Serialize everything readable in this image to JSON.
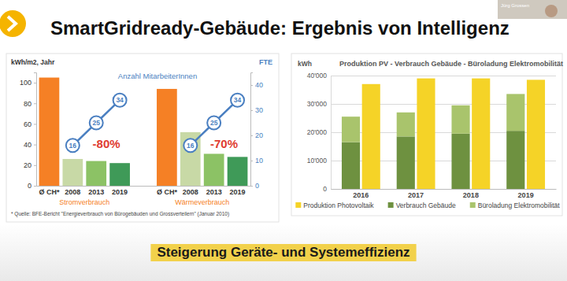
{
  "slide": {
    "title": "SmartGridready-Gebäude: Ergebnis von Intelligenz",
    "footer": "Steigerung Geräte- und Systemeffizienz",
    "presenter": "Jürg Grossen"
  },
  "chart_data": [
    {
      "type": "bar",
      "ylabel": "kWh/m2, Jahr",
      "y2label": "FTE",
      "categories": [
        "Ø CH*",
        "2008",
        "2013",
        "2019",
        null,
        "Ø CH*",
        "2008",
        "2013",
        "2019"
      ],
      "groups": [
        "Stromverbrauch",
        "Wärmeverbrauch"
      ],
      "annotations": [
        "-80%",
        "-70%"
      ],
      "footnote": "* Quelle: BFE-Bericht \"Energieverbrauch von Bürogebäuden und Grossverteilern\" (Januar 2010)",
      "series": [
        {
          "type": "bar",
          "colors": [
            "#f58025",
            "#c8d9a6",
            "#8cc265",
            "#3f9a58",
            null,
            "#f58025",
            "#c8d9a6",
            "#8cc265",
            "#3f9a58"
          ],
          "values": [
            105,
            26,
            24,
            22,
            null,
            94,
            52,
            31,
            28
          ]
        },
        {
          "name": "Anzahl MitarbeiterInnen",
          "type": "line",
          "axis": "y2",
          "color": "#4a7fc1",
          "marker": "circle",
          "data_labels": true,
          "values": [
            null,
            16,
            25,
            34,
            null,
            null,
            16,
            25,
            34
          ]
        }
      ],
      "ylim": [
        0,
        110
      ],
      "yticks": [
        0,
        20,
        40,
        60,
        80,
        100
      ],
      "y2lim": [
        0,
        45
      ],
      "y2ticks": [
        0,
        10,
        20,
        30,
        40
      ],
      "grid": false
    },
    {
      "type": "bar",
      "title": "Produktion PV - Verbrauch Gebäude - Büroladung Elektromobilität",
      "ylabel": "kWh",
      "categories": [
        "2016",
        "2017",
        "2018",
        "2019"
      ],
      "series": [
        {
          "name": "Produktion Photovoltaik",
          "color": "#f5d327",
          "values": [
            37000,
            39000,
            39000,
            38500
          ]
        },
        {
          "name": "Verbrauch Gebäude",
          "color": "#6e9140",
          "values": [
            16500,
            18500,
            19500,
            20500
          ]
        },
        {
          "name": "Büroladung Elektromobilität",
          "color": "#a9c46c",
          "values": [
            9000,
            8500,
            10000,
            13000
          ]
        }
      ],
      "stacked": [
        "Verbrauch Gebäude",
        "Büroladung Elektromobilität"
      ],
      "ylim": [
        0,
        40000
      ],
      "yticks": [
        0,
        {
          "value": 10000,
          "label": "10'000"
        },
        {
          "value": 20000,
          "label": "20'000"
        },
        {
          "value": 30000,
          "label": "30'000"
        },
        {
          "value": 40000,
          "label": "40'000"
        }
      ],
      "grid": true,
      "legend": "bottom"
    }
  ]
}
